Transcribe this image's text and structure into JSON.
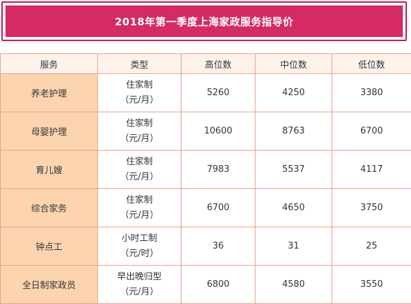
{
  "title": "2018年第一季度上海家政服务指导价",
  "headers": [
    "服务",
    "类型",
    "高位数",
    "中位数",
    "低位数"
  ],
  "rows": [
    {
      "service": "养老护理",
      "type_line1": "住家制",
      "type_line2": "（元/月）",
      "high": "5260",
      "mid": "4250",
      "low": "3380"
    },
    {
      "service": "母婴护理",
      "type_line1": "住家制",
      "type_line2": "（元/月）",
      "high": "10600",
      "mid": "8763",
      "low": "6700"
    },
    {
      "service": "育儿嫂",
      "type_line1": "住家制",
      "type_line2": "（元/月）",
      "high": "7983",
      "mid": "5537",
      "low": "4117"
    },
    {
      "service": "综合家务",
      "type_line1": "住家制",
      "type_line2": "（元/月）",
      "high": "6700",
      "mid": "4650",
      "low": "3750"
    },
    {
      "service": "钟点工",
      "type_line1": "小时工制",
      "type_line2": "（元/时）",
      "high": "36",
      "mid": "31",
      "low": "25"
    },
    {
      "service": "全日制家政员",
      "type_line1": "早出晚归型",
      "type_line2": "（元/月）",
      "high": "6800",
      "mid": "4580",
      "low": "3550"
    }
  ],
  "colors": {
    "title_bg": "#d42a65",
    "border": "#e8a08a",
    "service_bg": "#fcd4b0",
    "header_bg": "#fdf3ec"
  }
}
